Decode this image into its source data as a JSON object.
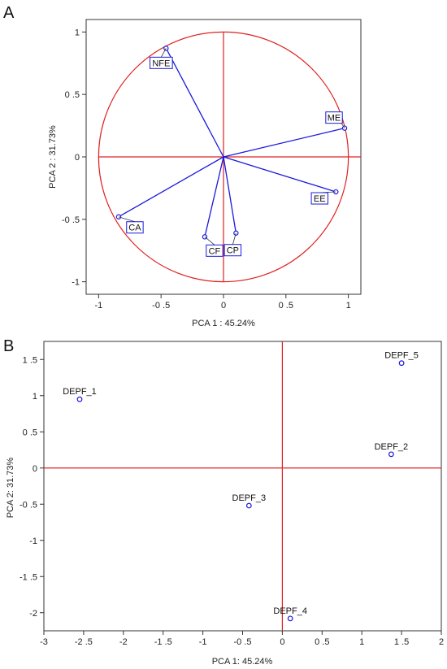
{
  "panels": {
    "a": {
      "letter": "A"
    },
    "b": {
      "letter": "B"
    }
  },
  "chart_data": [
    {
      "type": "scatter",
      "subtype": "pca-loadings-circle",
      "xlabel": "PCA 1 : 45.24%",
      "ylabel": "PCA 2 : 31.73%",
      "xlim": [
        -1.1,
        1.1
      ],
      "ylim": [
        -1.1,
        1.1
      ],
      "xticks": [
        -1,
        -0.5,
        0,
        0.5,
        1
      ],
      "yticks": [
        -1,
        -0.5,
        0,
        0.5,
        1
      ],
      "xtick_labels": [
        "-1",
        "-0 .5",
        "0",
        "0 .5",
        "1"
      ],
      "ytick_labels": [
        "-1",
        "-0 .5",
        "0",
        "0 .5",
        "1"
      ],
      "grid": false,
      "circle_radius": 1,
      "reference_color": "#e02020",
      "vector_color": "#1a1adc",
      "points": [
        {
          "label": "NFE",
          "x": -0.46,
          "y": 0.87
        },
        {
          "label": "ME",
          "x": 0.97,
          "y": 0.23
        },
        {
          "label": "EE",
          "x": 0.9,
          "y": -0.28
        },
        {
          "label": "CA",
          "x": -0.84,
          "y": -0.48
        },
        {
          "label": "CF",
          "x": -0.15,
          "y": -0.64
        },
        {
          "label": "CP",
          "x": 0.1,
          "y": -0.61
        }
      ]
    },
    {
      "type": "scatter",
      "xlabel": "PCA 1: 45.24%",
      "ylabel": "PCA 2: 31.73%",
      "xlim": [
        -3,
        2
      ],
      "ylim": [
        -2.25,
        1.75
      ],
      "xticks": [
        -3,
        -2.5,
        -2,
        -1.5,
        -1,
        -0.5,
        0,
        0.5,
        1,
        1.5,
        2
      ],
      "yticks": [
        -2,
        -1.5,
        -1,
        -0.5,
        0,
        0.5,
        1,
        1.5
      ],
      "xtick_labels": [
        "-3",
        "-2 .5",
        "-2",
        "-1 .5",
        "-1",
        "-0 .5",
        "0",
        "0 .5",
        "1",
        "1 .5",
        "2"
      ],
      "ytick_labels": [
        "-2",
        "-1 .5",
        "-1",
        "-0 .5",
        "0",
        "0 .5",
        "1",
        "1 .5"
      ],
      "grid": false,
      "reference_color": "#e02020",
      "point_color": "#1a1adc",
      "points": [
        {
          "label": "DEPF_1",
          "x": -2.55,
          "y": 0.95
        },
        {
          "label": "DEPF_2",
          "x": 1.37,
          "y": 0.19
        },
        {
          "label": "DEPF_3",
          "x": -0.42,
          "y": -0.52
        },
        {
          "label": "DEPF_4",
          "x": 0.1,
          "y": -2.08
        },
        {
          "label": "DEPF_5",
          "x": 1.5,
          "y": 1.45
        }
      ]
    }
  ]
}
